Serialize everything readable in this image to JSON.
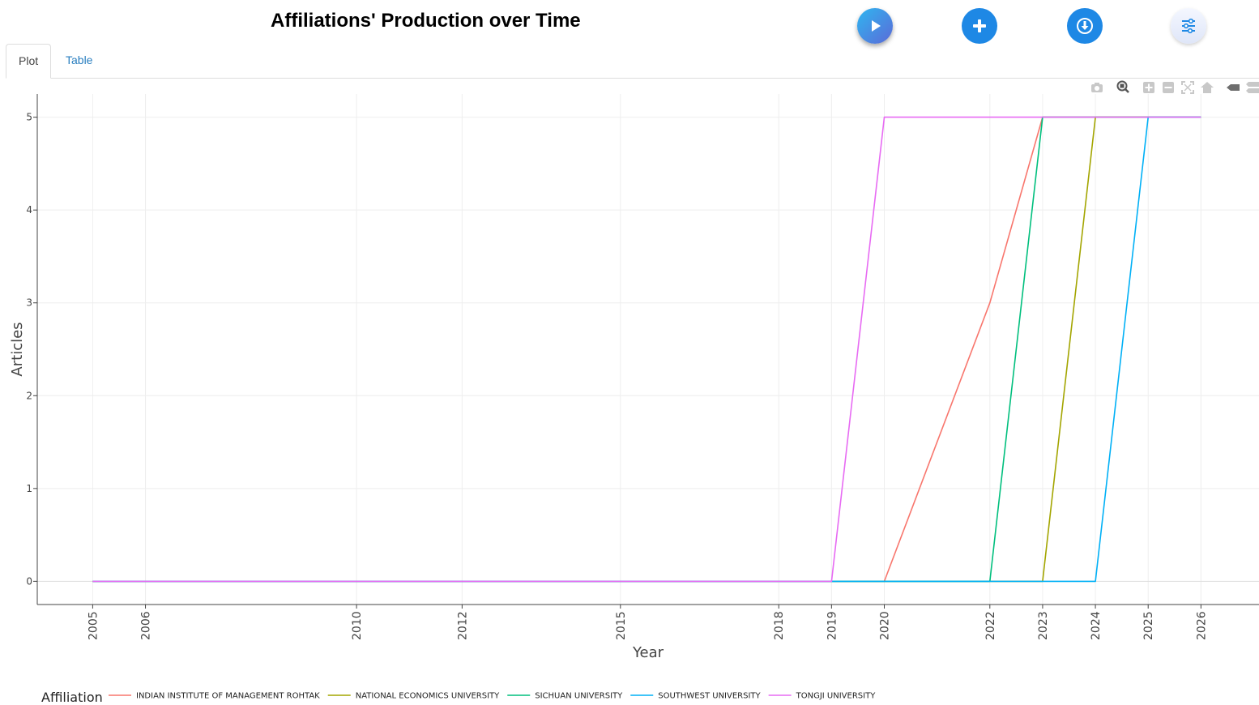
{
  "header": {
    "title": "Affiliations' Production over Time",
    "buttons": [
      {
        "name": "play-button",
        "icon": "play-icon"
      },
      {
        "name": "add-button",
        "icon": "plus-icon"
      },
      {
        "name": "download-button",
        "icon": "download-icon"
      },
      {
        "name": "settings-button",
        "icon": "sliders-icon"
      }
    ]
  },
  "tabs": [
    {
      "label": "Plot",
      "active": true
    },
    {
      "label": "Table",
      "active": false
    }
  ],
  "modebar": [
    "camera-icon",
    "zoom-icon",
    "zoom-in-icon",
    "zoom-out-icon",
    "autoscale-icon",
    "reset-axes-icon",
    "hover-closest-icon",
    "hover-compare-icon"
  ],
  "colors": {
    "accent": "#1e88e5",
    "tab_link": "#2a7fc0"
  },
  "chart_data": {
    "type": "line",
    "title": "",
    "xlabel": "Year",
    "ylabel": "Articles",
    "legend_title": "Affiliation",
    "legend_position": "bottom",
    "grid": true,
    "xlim": [
      2003.95,
      2027.1
    ],
    "ylim": [
      -0.25,
      5.25
    ],
    "x_ticks": [
      2005,
      2006,
      2010,
      2012,
      2015,
      2018,
      2019,
      2020,
      2022,
      2023,
      2024,
      2025,
      2026
    ],
    "y_ticks": [
      0,
      1,
      2,
      3,
      4,
      5
    ],
    "series": [
      {
        "name": "INDIAN INSTITUTE OF MANAGEMENT ROHTAK",
        "color": "#F8766D",
        "x": [
          2005,
          2006,
          2010,
          2012,
          2015,
          2018,
          2019,
          2020,
          2022,
          2023,
          2024,
          2025,
          2026
        ],
        "y": [
          0,
          0,
          0,
          0,
          0,
          0,
          0,
          0,
          3,
          5,
          5,
          5,
          5
        ]
      },
      {
        "name": "NATIONAL ECONOMICS UNIVERSITY",
        "color": "#A3A500",
        "x": [
          2005,
          2006,
          2010,
          2012,
          2015,
          2018,
          2019,
          2020,
          2022,
          2023,
          2024,
          2025,
          2026
        ],
        "y": [
          0,
          0,
          0,
          0,
          0,
          0,
          0,
          0,
          0,
          0,
          5,
          5,
          5
        ]
      },
      {
        "name": "SICHUAN UNIVERSITY",
        "color": "#00BF7D",
        "x": [
          2005,
          2006,
          2010,
          2012,
          2015,
          2018,
          2019,
          2020,
          2022,
          2023,
          2024,
          2025,
          2026
        ],
        "y": [
          0,
          0,
          0,
          0,
          0,
          0,
          0,
          0,
          0,
          5,
          5,
          5,
          5
        ]
      },
      {
        "name": "SOUTHWEST UNIVERSITY",
        "color": "#00B0F6",
        "x": [
          2005,
          2006,
          2010,
          2012,
          2015,
          2018,
          2019,
          2020,
          2022,
          2023,
          2024,
          2025,
          2026
        ],
        "y": [
          0,
          0,
          0,
          0,
          0,
          0,
          0,
          0,
          0,
          0,
          0,
          5,
          5
        ]
      },
      {
        "name": "TONGJI UNIVERSITY",
        "color": "#E76BF3",
        "x": [
          2005,
          2006,
          2010,
          2012,
          2015,
          2018,
          2019,
          2020,
          2022,
          2023,
          2024,
          2025,
          2026
        ],
        "y": [
          0,
          0,
          0,
          0,
          0,
          0,
          0,
          5,
          5,
          5,
          5,
          5,
          5
        ]
      }
    ]
  }
}
